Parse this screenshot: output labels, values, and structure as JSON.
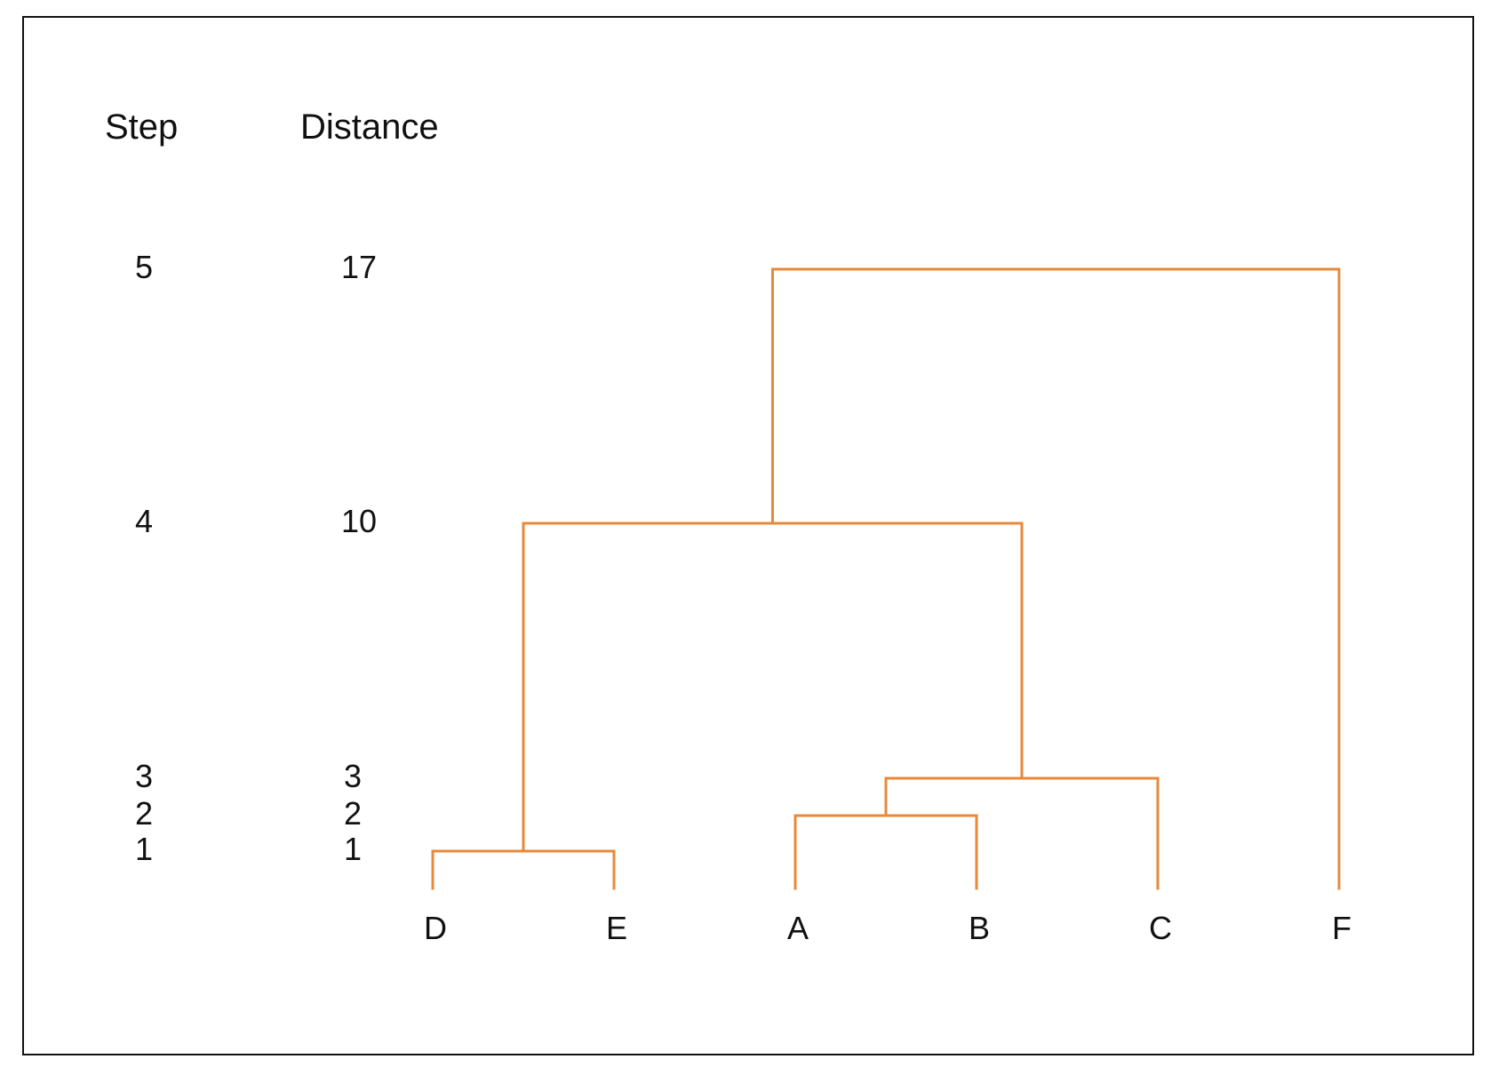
{
  "headers": {
    "step": "Step",
    "distance": "Distance"
  },
  "line_color": "#E8893A",
  "merges": [
    {
      "step": "1",
      "distance": "1",
      "height": 1
    },
    {
      "step": "2",
      "distance": "2",
      "height": 2
    },
    {
      "step": "3",
      "distance": "3",
      "height": 3
    },
    {
      "step": "4",
      "distance": "10",
      "height": 10
    },
    {
      "step": "5",
      "distance": "17",
      "height": 17
    }
  ],
  "leaves": [
    "D",
    "E",
    "A",
    "B",
    "C",
    "F"
  ],
  "tree": [
    {
      "left": "D",
      "right": "E",
      "height": 1
    },
    {
      "left": "A",
      "right": "B",
      "height": 2
    },
    {
      "left": "AB",
      "right": "C",
      "height": 3
    },
    {
      "left": "DE",
      "right": "ABC",
      "height": 10
    },
    {
      "left": "DEABC",
      "right": "F",
      "height": 17
    }
  ]
}
